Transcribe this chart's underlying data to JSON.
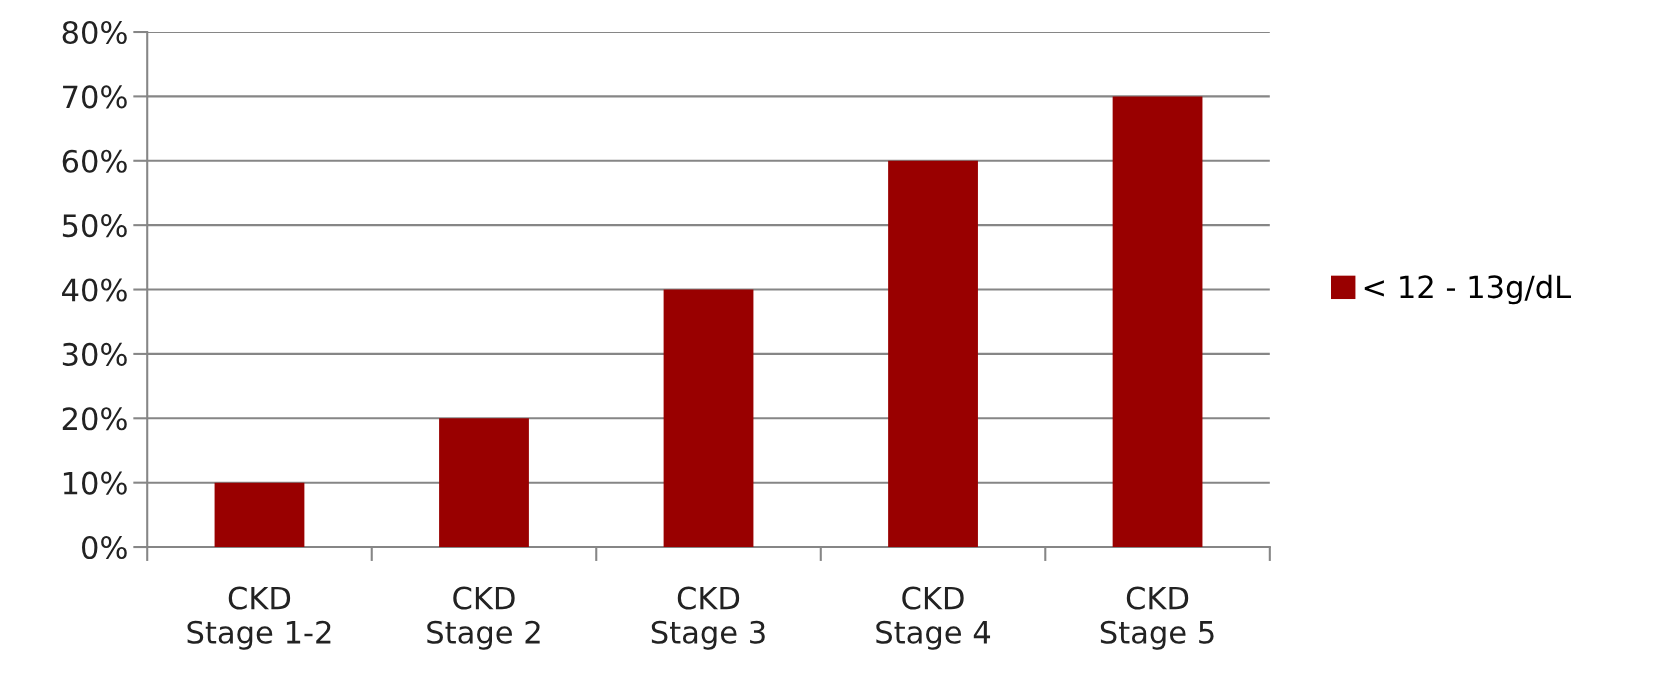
{
  "chart_data": {
    "type": "bar",
    "categories": [
      "CKD\nStage 1-2",
      "CKD\nStage 2",
      "CKD\nStage 3",
      "CKD\nStage 4",
      "CKD\nStage 5"
    ],
    "series": [
      {
        "name": "< 12 - 13g/dL",
        "color": "#990000",
        "values": [
          10,
          20,
          40,
          60,
          70
        ]
      }
    ],
    "ylim": [
      0,
      80
    ],
    "yticks": [
      {
        "value": 0,
        "label": "0%"
      },
      {
        "value": 10,
        "label": "10%"
      },
      {
        "value": 20,
        "label": "20%"
      },
      {
        "value": 30,
        "label": "30%"
      },
      {
        "value": 40,
        "label": "40%"
      },
      {
        "value": 50,
        "label": "50%"
      },
      {
        "value": 60,
        "label": "60%"
      },
      {
        "value": 70,
        "label": "70%"
      },
      {
        "value": 80,
        "label": "80%"
      }
    ],
    "grid": "y",
    "legend": "right"
  }
}
